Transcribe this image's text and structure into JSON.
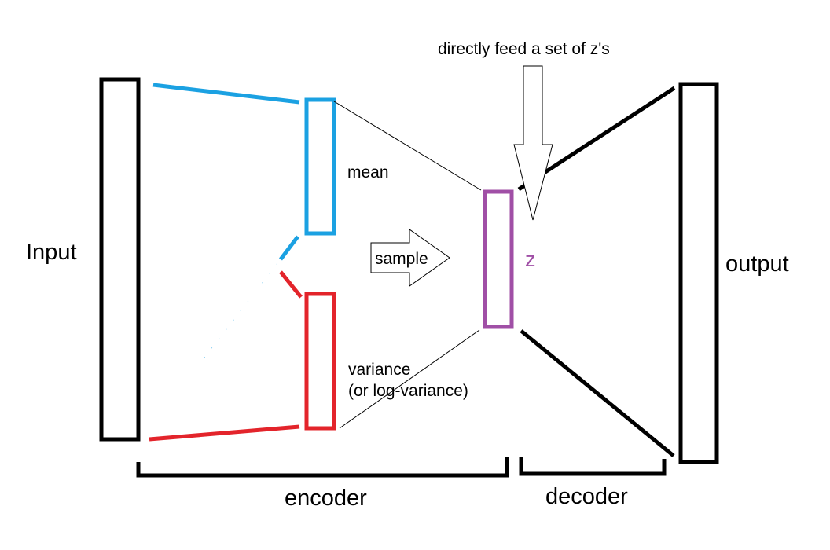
{
  "labels": {
    "input": "Input",
    "output": "output",
    "mean": "mean",
    "variance_line1": "variance",
    "variance_line2": "(or log-variance)",
    "sample": "sample",
    "z": "z",
    "feed": "directly feed a set of z's",
    "encoder": "encoder",
    "decoder": "decoder"
  },
  "colors": {
    "background": "#ffffff",
    "frame": "#000000",
    "mean": "#1ba1e2",
    "variance": "#e3242b",
    "latent": "#a04fa6"
  },
  "icons": {
    "sample_arrow": "right-arrow-outline",
    "feed_arrow": "down-arrow-outline"
  }
}
